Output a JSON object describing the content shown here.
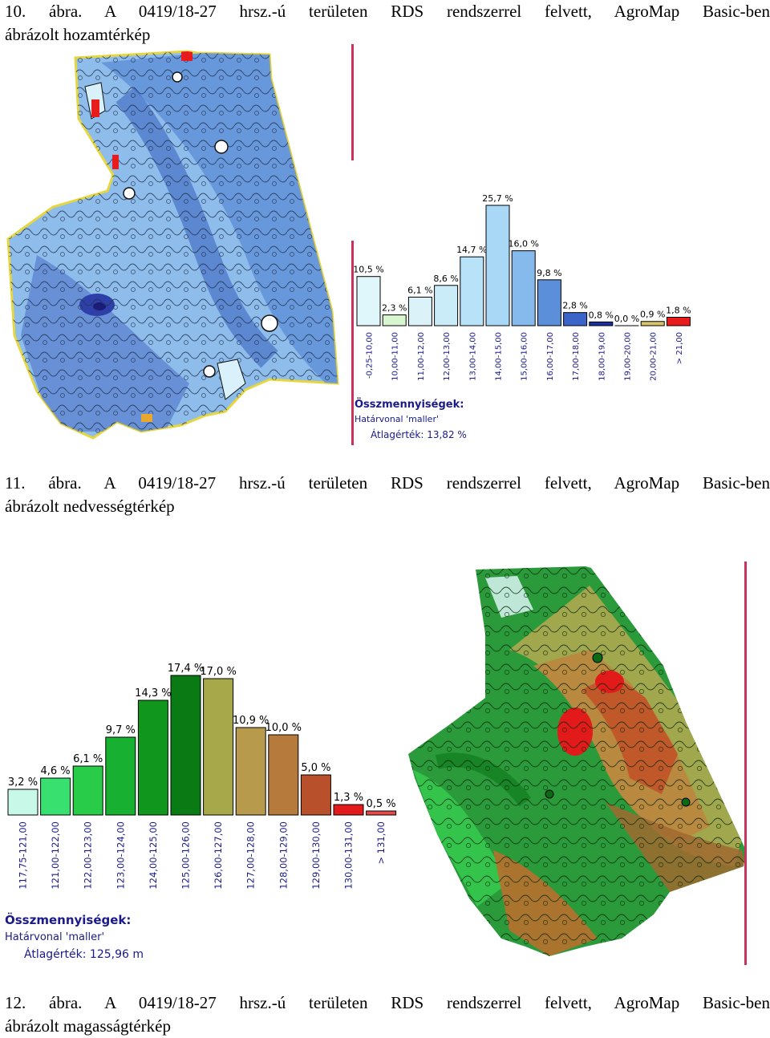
{
  "captions": [
    {
      "line1": "10. ábra. A 0419/18-27 hrsz.-ú területen RDS rendszerrel felvett, AgroMap Basic-ben",
      "line2": "ábrázolt hozamtérkép"
    },
    {
      "line1": "11. ábra. A 0419/18-27 hrsz.-ú területen RDS rendszerrel felvett, AgroMap Basic-ben",
      "line2": "ábrázolt nedvességtérkép"
    },
    {
      "line1": "12. ábra. A 0419/18-27 hrsz.-ú területen RDS rendszerrel felvett, AgroMap Basic-ben",
      "line2": "ábrázolt magasságtérkép"
    }
  ],
  "chart_data": [
    {
      "type": "bar",
      "categories": [
        "-0,25-10,00",
        "10,00-11,00",
        "11,00-12,00",
        "12,00-13,00",
        "13,00-14,00",
        "14,00-15,00",
        "15,00-16,00",
        "16,00-17,00",
        "17,00-18,00",
        "18,00-19,00",
        "19,00-20,00",
        "20,00-21,00",
        "> 21,00"
      ],
      "values": [
        10.5,
        2.3,
        6.1,
        8.6,
        14.7,
        25.7,
        16.0,
        9.8,
        2.8,
        0.8,
        0.0,
        0.9,
        1.8
      ],
      "value_labels": [
        "10,5 %",
        "2,3 %",
        "6,1 %",
        "8,6 %",
        "14,7 %",
        "25,7 %",
        "16,0 %",
        "9,8 %",
        "2,8 %",
        "0,8 %",
        "0,0 %",
        "0,9 %",
        "1,8 %"
      ],
      "colors": [
        "#dff6fb",
        "#d8f7d0",
        "#dcf2f9",
        "#c9ecf8",
        "#b8e2f8",
        "#a8d8f6",
        "#86b9ec",
        "#5c8fda",
        "#3a64c8",
        "#1d2fa0",
        "#1a1a8a",
        "#d8c46a",
        "#e81c1c"
      ],
      "ylim": [
        0,
        30
      ],
      "summary": {
        "title": "Összmennyiségek:",
        "line1": "Határvonal 'maller'",
        "line2": "Átlagérték: 13,82 %"
      }
    },
    {
      "type": "bar",
      "categories": [
        "117,75-121,00",
        "121,00-122,00",
        "122,00-123,00",
        "123,00-124,00",
        "124,00-125,00",
        "125,00-126,00",
        "126,00-127,00",
        "127,00-128,00",
        "128,00-129,00",
        "129,00-130,00",
        "130,00-131,00",
        "> 131,00"
      ],
      "values": [
        3.2,
        4.6,
        6.1,
        9.7,
        14.3,
        17.4,
        17.0,
        10.9,
        10.0,
        5.0,
        1.3,
        0.5
      ],
      "value_labels": [
        "3,2 %",
        "4,6 %",
        "6,1 %",
        "9,7 %",
        "14,3 %",
        "17,4 %",
        "17,0 %",
        "10,9 %",
        "10,0 %",
        "5,0 %",
        "1,3 %",
        "0,5 %"
      ],
      "colors": [
        "#c8f8e8",
        "#38e070",
        "#28cc48",
        "#18b030",
        "#10961c",
        "#0a7a14",
        "#a6a84a",
        "#b79a4c",
        "#b57a3c",
        "#b8502c",
        "#e21a1a",
        "#e84a4a"
      ],
      "ylim": [
        0,
        19
      ],
      "summary": {
        "title": "Összmennyiségek:",
        "line1": "Határvonal 'maller'",
        "line2": "Átlagérték: 125,96 m"
      }
    }
  ],
  "colors": {
    "yield_map_base": "#8ebdec",
    "elevation_map_base": "#2a9a3a",
    "field_border": "#e6d640",
    "divider": "#c9325a"
  }
}
